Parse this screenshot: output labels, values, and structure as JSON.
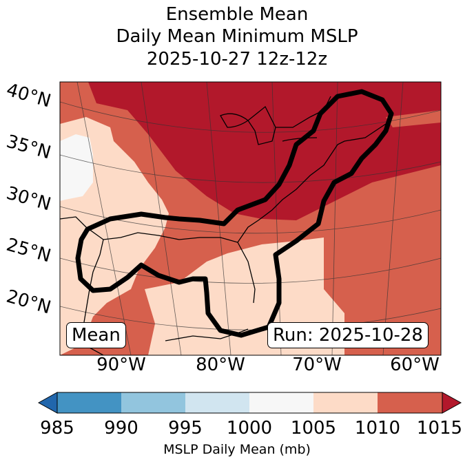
{
  "title": {
    "line1": "Ensemble Mean",
    "line2": "Daily Mean Minimum MSLP",
    "line3": "2025-10-27 12z-12z"
  },
  "map": {
    "latitude_labels": [
      "40°N",
      "35°N",
      "30°N",
      "25°N",
      "20°N"
    ],
    "longitude_labels": [
      "90°W",
      "80°W",
      "70°W",
      "60°W"
    ],
    "mean_box": "Mean",
    "run_box": "Run: 2025-10-28",
    "colors": {
      "c1015": "#b2182b",
      "c1010": "#d6604d",
      "c1005": "#fddbc7",
      "c1000": "#f7f7f7",
      "c995": "#d1e5f0",
      "c990": "#92c5de",
      "c985": "#4393c3",
      "c_under": "#2166ac"
    }
  },
  "colorbar": {
    "ticks": [
      "985",
      "990",
      "995",
      "1000",
      "1005",
      "1010",
      "1015"
    ],
    "label": "MSLP Daily Mean (mb)"
  }
}
